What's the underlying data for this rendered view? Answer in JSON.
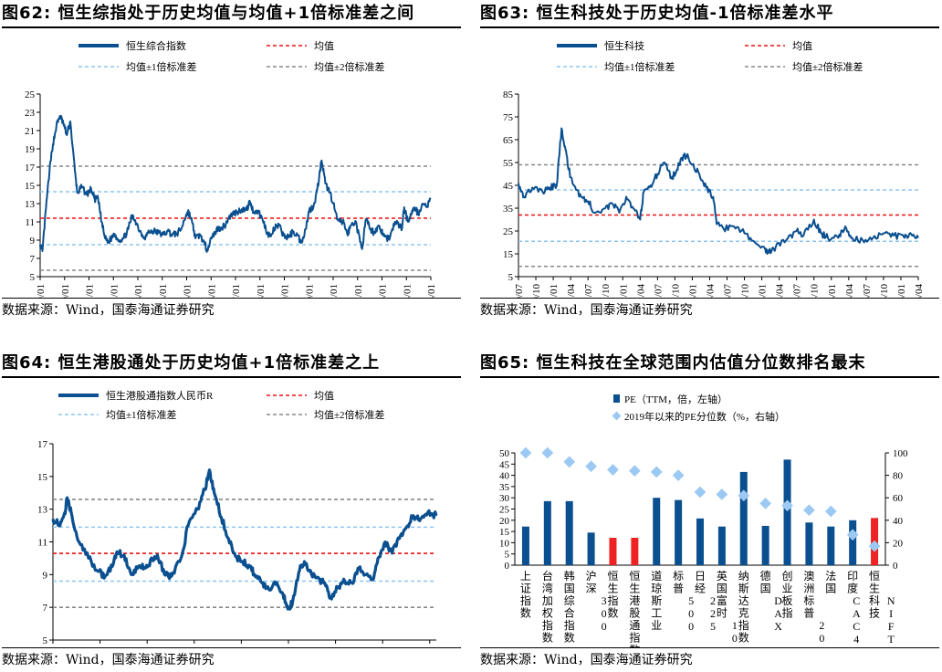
{
  "source": "数据来源：Wind，国泰海通证券研究",
  "charts": [
    {
      "title": "图62:  恒生综指处于历史均值与均值+1倍标准差之间",
      "legend": [
        "恒生综合指数",
        "均值",
        "均值±1倍标准差",
        "均值±2倍标准差"
      ]
    },
    {
      "title": "图63:  恒生科技处于历史均值-1倍标准差水平",
      "legend": [
        "恒生科技",
        "均值",
        "均值±1倍标准差",
        "均值±2倍标准差"
      ]
    },
    {
      "title": "图64:  恒生港股通处于历史均值+1倍标准差之上",
      "legend": [
        "恒生港股通指数人民币R",
        "均值",
        "均值±1倍标准差",
        "均值±2倍标准差"
      ]
    },
    {
      "title": "图65:  恒生科技在全球范围内估值分位数排名最末",
      "legend": [
        "PE（TTM，倍，左轴）",
        "2019年以来的PE分位数（%，右轴）"
      ]
    }
  ],
  "colors": {
    "series": "#0a4f8f",
    "mean": "#ee1111",
    "sd1": "#8ec5f0",
    "sd2": "#888888",
    "highlight": "#ee2222",
    "diamond": "#9cc9f3"
  },
  "chart_data": [
    {
      "type": "line",
      "ylim": [
        5,
        25
      ],
      "yticks": [
        "5",
        "7",
        "9",
        "11",
        "13",
        "15",
        "17",
        "19",
        "21",
        "23",
        "25"
      ],
      "xticks": [
        "09/01",
        "10/01",
        "11/01",
        "12/01",
        "13/01",
        "14/01",
        "15/01",
        "16/01",
        "17/01",
        "18/01",
        "19/01",
        "20/01",
        "21/01",
        "22/01",
        "23/01",
        "24/01",
        "25/01"
      ],
      "x_range": [
        2009.0,
        2025.85
      ],
      "hlines": {
        "mean": 11.4,
        "sd1": [
          8.5,
          14.3
        ],
        "sd2": [
          5.7,
          17.1
        ]
      },
      "series": [
        {
          "values": [
            [
              2009.0,
              8.5
            ],
            [
              2009.1,
              7.8
            ],
            [
              2009.25,
              12.5
            ],
            [
              2009.4,
              16.5
            ],
            [
              2009.55,
              19.5
            ],
            [
              2009.7,
              21.5
            ],
            [
              2009.85,
              22.6
            ],
            [
              2010.0,
              21.8
            ],
            [
              2010.15,
              20.5
            ],
            [
              2010.3,
              22.0
            ],
            [
              2010.5,
              16.5
            ],
            [
              2010.6,
              14.2
            ],
            [
              2010.8,
              14.8
            ],
            [
              2011.0,
              14.0
            ],
            [
              2011.2,
              14.6
            ],
            [
              2011.35,
              13.5
            ],
            [
              2011.5,
              13.5
            ],
            [
              2011.65,
              11.0
            ],
            [
              2011.8,
              9.2
            ],
            [
              2011.95,
              8.8
            ],
            [
              2012.2,
              9.7
            ],
            [
              2012.4,
              9.0
            ],
            [
              2012.6,
              9.2
            ],
            [
              2012.8,
              10.2
            ],
            [
              2012.95,
              11.6
            ],
            [
              2013.1,
              11.2
            ],
            [
              2013.3,
              10.0
            ],
            [
              2013.5,
              9.3
            ],
            [
              2013.7,
              9.9
            ],
            [
              2013.9,
              10.0
            ],
            [
              2014.1,
              9.8
            ],
            [
              2014.3,
              9.6
            ],
            [
              2014.5,
              10.0
            ],
            [
              2014.7,
              9.6
            ],
            [
              2014.9,
              9.7
            ],
            [
              2015.1,
              10.3
            ],
            [
              2015.3,
              11.8
            ],
            [
              2015.4,
              12.1
            ],
            [
              2015.55,
              11.0
            ],
            [
              2015.7,
              9.2
            ],
            [
              2015.9,
              9.6
            ],
            [
              2016.1,
              8.5
            ],
            [
              2016.2,
              8.0
            ],
            [
              2016.4,
              9.2
            ],
            [
              2016.6,
              10.1
            ],
            [
              2016.8,
              10.4
            ],
            [
              2016.95,
              10.5
            ],
            [
              2017.1,
              11.3
            ],
            [
              2017.3,
              11.9
            ],
            [
              2017.5,
              12.1
            ],
            [
              2017.7,
              12.4
            ],
            [
              2017.9,
              12.3
            ],
            [
              2018.05,
              13.2
            ],
            [
              2018.2,
              12.1
            ],
            [
              2018.4,
              12.2
            ],
            [
              2018.6,
              11.2
            ],
            [
              2018.8,
              9.8
            ],
            [
              2018.95,
              9.4
            ],
            [
              2019.1,
              10.3
            ],
            [
              2019.3,
              10.6
            ],
            [
              2019.5,
              9.5
            ],
            [
              2019.7,
              9.3
            ],
            [
              2019.9,
              9.9
            ],
            [
              2020.1,
              9.6
            ],
            [
              2020.25,
              8.7
            ],
            [
              2020.45,
              10.2
            ],
            [
              2020.6,
              12.2
            ],
            [
              2020.8,
              12.8
            ],
            [
              2020.95,
              14.5
            ],
            [
              2021.1,
              17.2
            ],
            [
              2021.15,
              17.5
            ],
            [
              2021.3,
              15.2
            ],
            [
              2021.5,
              14.2
            ],
            [
              2021.65,
              13.0
            ],
            [
              2021.8,
              11.3
            ],
            [
              2021.95,
              11.0
            ],
            [
              2022.1,
              10.9
            ],
            [
              2022.25,
              9.6
            ],
            [
              2022.4,
              10.6
            ],
            [
              2022.6,
              11.1
            ],
            [
              2022.8,
              8.8
            ],
            [
              2022.9,
              8.3
            ],
            [
              2023.05,
              11.3
            ],
            [
              2023.2,
              10.4
            ],
            [
              2023.4,
              9.8
            ],
            [
              2023.6,
              10.6
            ],
            [
              2023.8,
              9.6
            ],
            [
              2023.95,
              9.2
            ],
            [
              2024.1,
              9.4
            ],
            [
              2024.3,
              11.0
            ],
            [
              2024.5,
              10.6
            ],
            [
              2024.6,
              10.2
            ],
            [
              2024.7,
              12.6
            ],
            [
              2024.85,
              11.1
            ],
            [
              2025.0,
              11.8
            ],
            [
              2025.15,
              12.6
            ],
            [
              2025.3,
              11.9
            ],
            [
              2025.5,
              13.0
            ],
            [
              2025.7,
              12.7
            ],
            [
              2025.85,
              13.6
            ]
          ]
        }
      ]
    },
    {
      "type": "line",
      "ylim": [
        5,
        85
      ],
      "yticks": [
        "5",
        "15",
        "25",
        "35",
        "45",
        "55",
        "65",
        "75",
        "85"
      ],
      "xticks": [
        "20/07",
        "20/10",
        "21/01",
        "21/04",
        "21/07",
        "21/10",
        "22/01",
        "22/04",
        "22/07",
        "22/10",
        "23/01",
        "23/04",
        "23/07",
        "23/10",
        "24/01",
        "24/04",
        "24/07",
        "24/10",
        "25/01",
        "25/04",
        "25/07",
        "25/10",
        "26/01",
        "26/04"
      ],
      "x_range": [
        2020.5,
        2026.25
      ],
      "hlines": {
        "mean": 32,
        "sd1": [
          20.5,
          43
        ],
        "sd2": [
          9.5,
          54
        ]
      },
      "series": [
        {
          "values": [
            [
              2020.5,
              46
            ],
            [
              2020.58,
              40
            ],
            [
              2020.7,
              44
            ],
            [
              2020.85,
              42
            ],
            [
              2020.95,
              44
            ],
            [
              2021.05,
              45
            ],
            [
              2021.12,
              70
            ],
            [
              2021.17,
              62
            ],
            [
              2021.22,
              52
            ],
            [
              2021.3,
              45
            ],
            [
              2021.4,
              40
            ],
            [
              2021.5,
              38
            ],
            [
              2021.6,
              33
            ],
            [
              2021.75,
              35
            ],
            [
              2021.85,
              37
            ],
            [
              2021.95,
              33
            ],
            [
              2022.05,
              40
            ],
            [
              2022.15,
              35
            ],
            [
              2022.25,
              30
            ],
            [
              2022.3,
              42
            ],
            [
              2022.4,
              45
            ],
            [
              2022.5,
              50
            ],
            [
              2022.6,
              55
            ],
            [
              2022.7,
              48
            ],
            [
              2022.78,
              52
            ],
            [
              2022.85,
              57
            ],
            [
              2022.92,
              58
            ],
            [
              2023.0,
              54
            ],
            [
              2023.1,
              50
            ],
            [
              2023.2,
              44
            ],
            [
              2023.3,
              40
            ],
            [
              2023.35,
              28
            ],
            [
              2023.45,
              26
            ],
            [
              2023.6,
              27
            ],
            [
              2023.75,
              24
            ],
            [
              2023.9,
              20
            ],
            [
              2024.05,
              17
            ],
            [
              2024.1,
              15.5
            ],
            [
              2024.2,
              18
            ],
            [
              2024.35,
              21
            ],
            [
              2024.5,
              25
            ],
            [
              2024.6,
              23
            ],
            [
              2024.75,
              30
            ],
            [
              2024.85,
              24
            ],
            [
              2024.95,
              22
            ],
            [
              2025.1,
              22
            ],
            [
              2025.2,
              27
            ],
            [
              2025.3,
              22
            ],
            [
              2025.45,
              21
            ],
            [
              2025.6,
              22
            ],
            [
              2025.75,
              24
            ],
            [
              2025.9,
              23
            ],
            [
              2026.05,
              22
            ],
            [
              2026.15,
              23.5
            ],
            [
              2026.25,
              22
            ]
          ]
        }
      ]
    },
    {
      "type": "line",
      "ylim": [
        5,
        17
      ],
      "yticks": [
        "5",
        "7",
        "9",
        "11",
        "13",
        "15",
        "17"
      ],
      "xticks": [
        "17/09",
        "18/09",
        "19/09",
        "20/09",
        "21/09",
        "22/09",
        "23/09",
        "24/09",
        "25/09"
      ],
      "x_range": [
        2017.75,
        2025.83
      ],
      "hlines": {
        "mean": 10.3,
        "sd1": [
          8.6,
          11.9
        ],
        "sd2": [
          7.0,
          13.6
        ]
      },
      "series": [
        {
          "values": [
            [
              2017.75,
              12.4
            ],
            [
              2017.9,
              12.0
            ],
            [
              2018.0,
              12.8
            ],
            [
              2018.05,
              13.7
            ],
            [
              2018.15,
              12.6
            ],
            [
              2018.3,
              11.0
            ],
            [
              2018.5,
              10.0
            ],
            [
              2018.7,
              9.2
            ],
            [
              2018.85,
              8.9
            ],
            [
              2019.0,
              9.5
            ],
            [
              2019.1,
              10.4
            ],
            [
              2019.25,
              10.2
            ],
            [
              2019.4,
              9.0
            ],
            [
              2019.55,
              9.5
            ],
            [
              2019.7,
              9.4
            ],
            [
              2019.85,
              9.9
            ],
            [
              2019.95,
              10.2
            ],
            [
              2020.1,
              9.0
            ],
            [
              2020.25,
              8.9
            ],
            [
              2020.45,
              10.0
            ],
            [
              2020.6,
              12.0
            ],
            [
              2020.8,
              13.0
            ],
            [
              2020.95,
              14.2
            ],
            [
              2021.05,
              15.4
            ],
            [
              2021.15,
              14.0
            ],
            [
              2021.3,
              12.5
            ],
            [
              2021.45,
              11.2
            ],
            [
              2021.6,
              10.1
            ],
            [
              2021.75,
              9.8
            ],
            [
              2021.9,
              9.5
            ],
            [
              2022.0,
              9.0
            ],
            [
              2022.15,
              8.5
            ],
            [
              2022.3,
              8.1
            ],
            [
              2022.45,
              8.4
            ],
            [
              2022.6,
              7.8
            ],
            [
              2022.7,
              6.9
            ],
            [
              2022.8,
              7.3
            ],
            [
              2022.95,
              9.3
            ],
            [
              2023.05,
              9.8
            ],
            [
              2023.2,
              9.0
            ],
            [
              2023.35,
              8.8
            ],
            [
              2023.5,
              8.3
            ],
            [
              2023.6,
              7.6
            ],
            [
              2023.75,
              8.2
            ],
            [
              2023.9,
              8.6
            ],
            [
              2024.05,
              8.5
            ],
            [
              2024.2,
              9.4
            ],
            [
              2024.35,
              9.0
            ],
            [
              2024.5,
              8.7
            ],
            [
              2024.6,
              10.0
            ],
            [
              2024.75,
              11.0
            ],
            [
              2024.9,
              10.3
            ],
            [
              2025.05,
              11.2
            ],
            [
              2025.2,
              11.9
            ],
            [
              2025.35,
              12.6
            ],
            [
              2025.5,
              12.4
            ],
            [
              2025.65,
              12.8
            ],
            [
              2025.83,
              12.6
            ]
          ]
        }
      ]
    },
    {
      "type": "bar",
      "ylim": [
        0,
        50
      ],
      "y2lim": [
        0,
        100
      ],
      "yticks": [
        "0",
        "5",
        "10",
        "15",
        "20",
        "25",
        "30",
        "35",
        "40",
        "45",
        "50"
      ],
      "y2ticks": [
        "0",
        "20",
        "40",
        "60",
        "80",
        "100"
      ],
      "categories": [
        "上证指数",
        "台湾加权指数",
        "韩国综合指数",
        "沪深300",
        "恒生指数",
        "恒生港股通指数",
        "道琼斯工业",
        "标普500",
        "日经225",
        "英国富时100",
        "纳斯达克指数",
        "德国DAX",
        "创业板指",
        "澳洲标普200",
        "法国CAC40",
        "印度NIFTY50",
        "恒生科技"
      ],
      "values": [
        17.2,
        28.5,
        28.5,
        14.5,
        12.2,
        12.2,
        30.0,
        29.0,
        20.8,
        17.2,
        41.5,
        17.5,
        47.0,
        19.0,
        17.2,
        20.0,
        21.0
      ],
      "highlight": [
        false,
        false,
        false,
        false,
        true,
        true,
        false,
        false,
        false,
        false,
        false,
        false,
        false,
        false,
        false,
        false,
        true
      ],
      "percentile": [
        100,
        100,
        92,
        88,
        85,
        84,
        83,
        80,
        65,
        63,
        62,
        55,
        53,
        49,
        48,
        27,
        17
      ]
    }
  ]
}
